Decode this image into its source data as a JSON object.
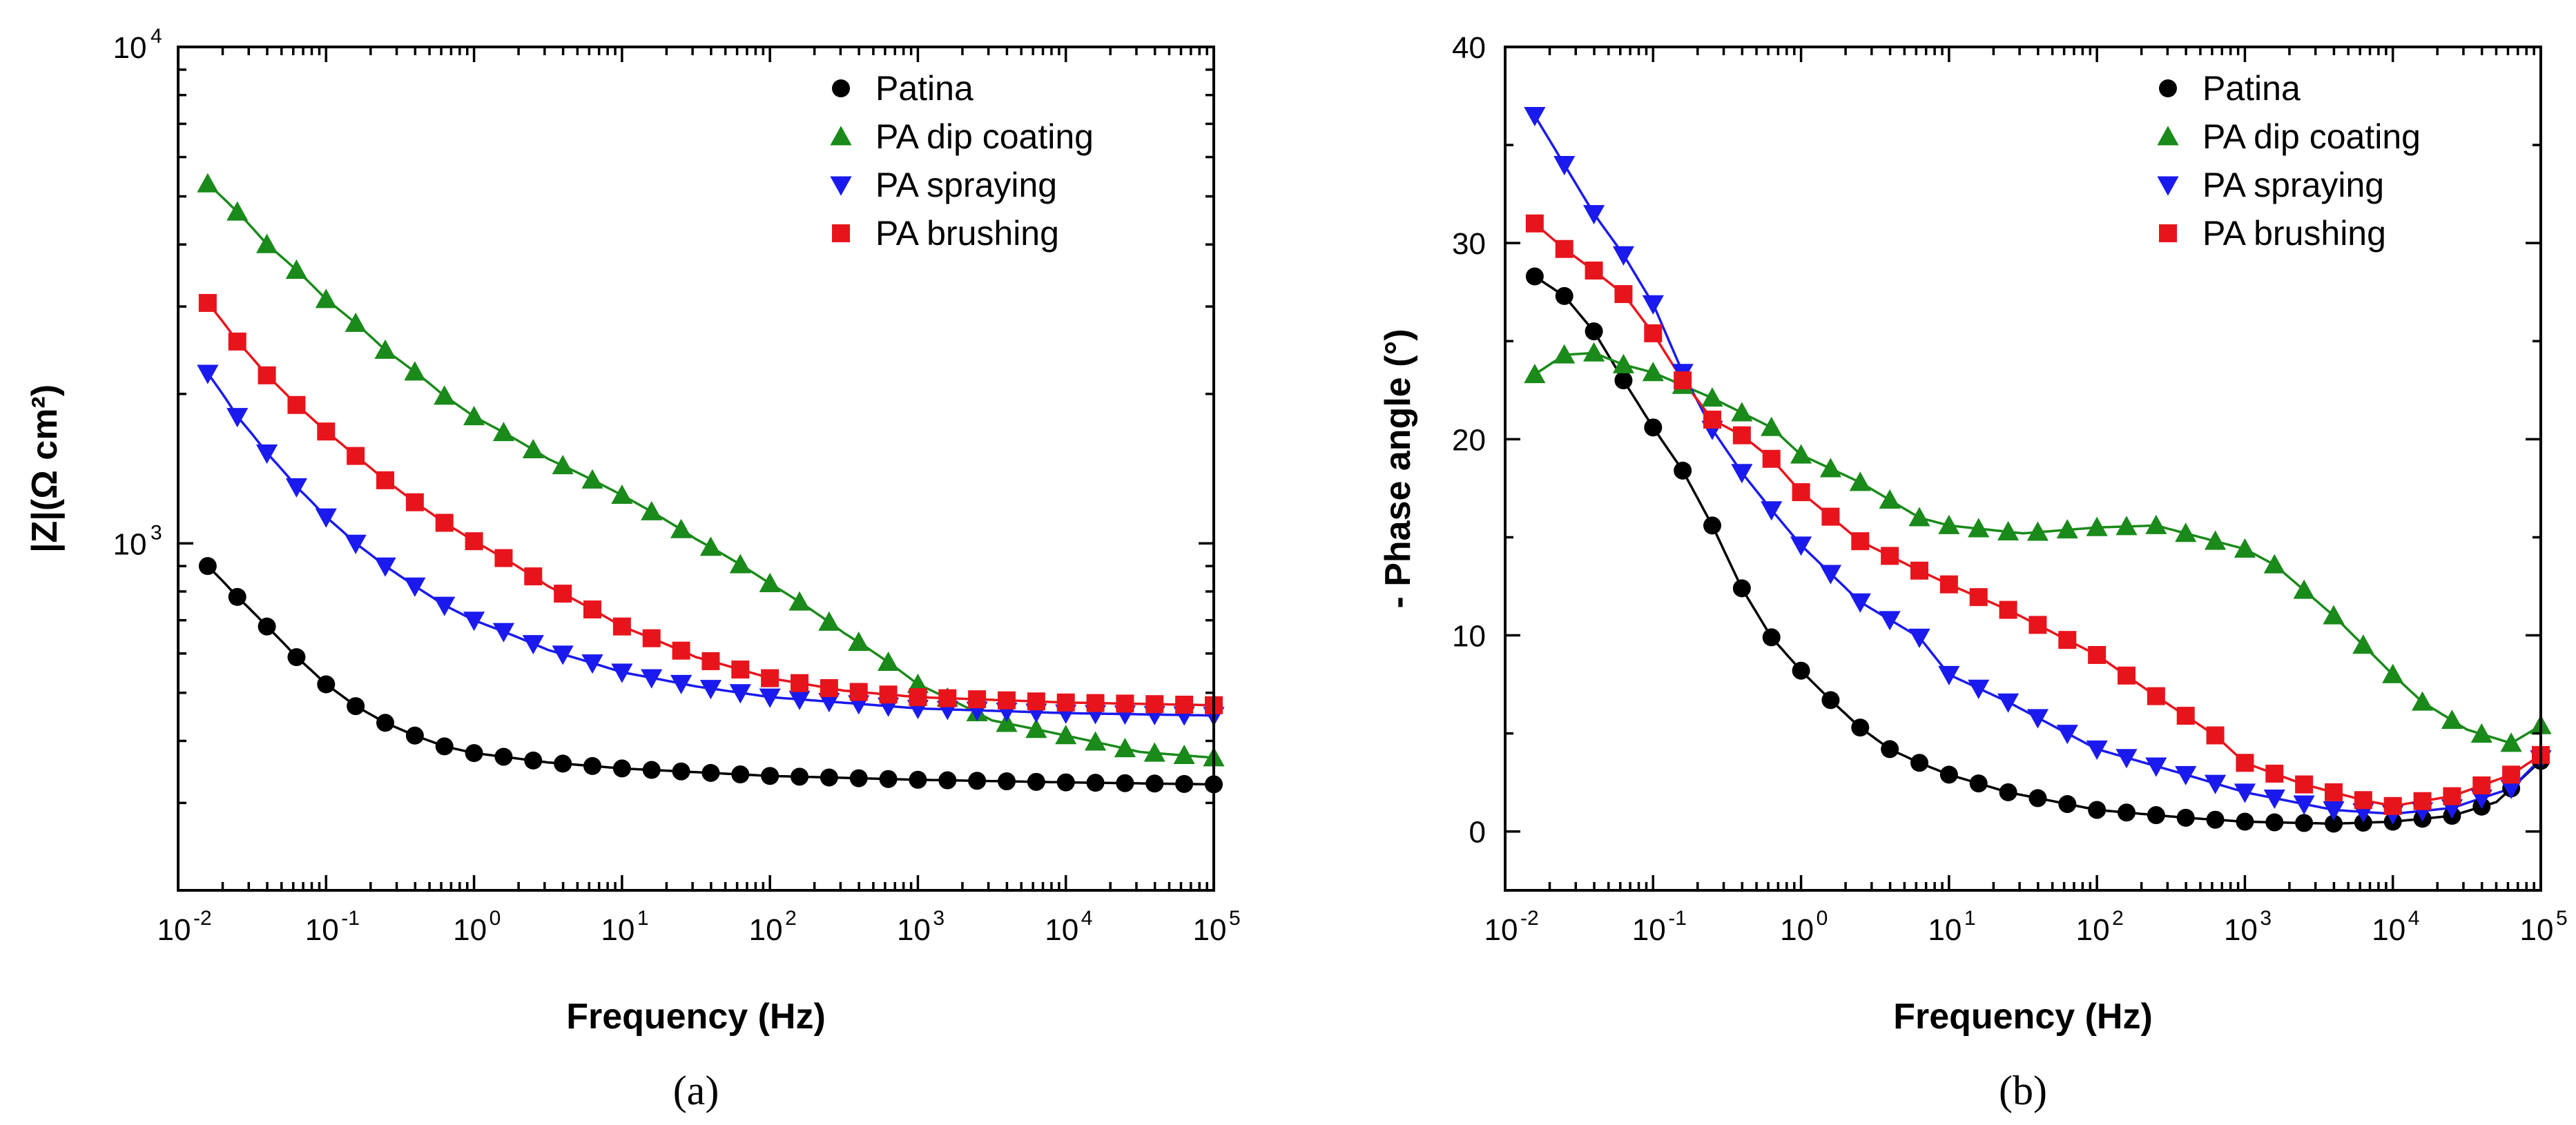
{
  "chart_data": [
    {
      "type": "scatter",
      "panel": "a",
      "caption": "(a)",
      "xscale": "log",
      "yscale": "log",
      "xlabel": "Frequency (Hz)",
      "ylabel": "|Z|(Ω cm²)",
      "xlim": [
        0.01,
        100000
      ],
      "ylim": [
        200,
        10000
      ],
      "x_ticks": [
        {
          "base": "10",
          "exp": "-2"
        },
        {
          "base": "10",
          "exp": "-1"
        },
        {
          "base": "10",
          "exp": "0"
        },
        {
          "base": "10",
          "exp": "1"
        },
        {
          "base": "10",
          "exp": "2"
        },
        {
          "base": "10",
          "exp": "3"
        },
        {
          "base": "10",
          "exp": "4"
        },
        {
          "base": "10",
          "exp": "5"
        }
      ],
      "y_ticks": [
        {
          "base": "10",
          "exp": "3"
        },
        {
          "base": "10",
          "exp": "4"
        }
      ],
      "legend_position": "top-right",
      "series": [
        {
          "name": "Patina",
          "marker": "circle",
          "color": "#000000",
          "anchors": [
            [
              -1.8,
              900
            ],
            [
              -1.6,
              780
            ],
            [
              -1.4,
              680
            ],
            [
              -1.2,
              590
            ],
            [
              -1.0,
              520
            ],
            [
              -0.8,
              470
            ],
            [
              -0.6,
              435
            ],
            [
              -0.4,
              410
            ],
            [
              -0.2,
              390
            ],
            [
              0.0,
              378
            ],
            [
              0.5,
              362
            ],
            [
              1.0,
              352
            ],
            [
              2.0,
              340
            ],
            [
              3.0,
              334
            ],
            [
              4.0,
              330
            ],
            [
              5.0,
              327
            ]
          ]
        },
        {
          "name": "PA dip coating",
          "marker": "triangle-up",
          "color": "#1a8a1a",
          "anchors": [
            [
              -1.8,
              5300
            ],
            [
              -1.4,
              4000
            ],
            [
              -1.0,
              3100
            ],
            [
              -0.6,
              2450
            ],
            [
              -0.2,
              1980
            ],
            [
              0.0,
              1800
            ],
            [
              0.5,
              1480
            ],
            [
              1.0,
              1250
            ],
            [
              1.5,
              1020
            ],
            [
              2.0,
              830
            ],
            [
              2.5,
              660
            ],
            [
              3.0,
              520
            ],
            [
              3.5,
              440
            ],
            [
              4.0,
              410
            ],
            [
              4.5,
              380
            ],
            [
              5.0,
              370
            ]
          ]
        },
        {
          "name": "PA spraying",
          "marker": "triangle-down",
          "color": "#1a1aee",
          "anchors": [
            [
              -1.8,
              2200
            ],
            [
              -1.6,
              1800
            ],
            [
              -1.4,
              1520
            ],
            [
              -1.2,
              1300
            ],
            [
              -1.0,
              1130
            ],
            [
              -0.8,
              1000
            ],
            [
              -0.6,
              900
            ],
            [
              -0.4,
              820
            ],
            [
              -0.2,
              750
            ],
            [
              0.0,
              700
            ],
            [
              0.5,
              610
            ],
            [
              1.0,
              550
            ],
            [
              1.5,
              515
            ],
            [
              2.0,
              490
            ],
            [
              3.0,
              465
            ],
            [
              4.0,
              455
            ],
            [
              5.0,
              450
            ]
          ]
        },
        {
          "name": "PA brushing",
          "marker": "square",
          "color": "#e8141c",
          "anchors": [
            [
              -1.8,
              3050
            ],
            [
              -1.6,
              2550
            ],
            [
              -1.4,
              2180
            ],
            [
              -1.2,
              1900
            ],
            [
              -1.0,
              1680
            ],
            [
              -0.8,
              1500
            ],
            [
              -0.6,
              1340
            ],
            [
              -0.4,
              1210
            ],
            [
              -0.2,
              1100
            ],
            [
              0.0,
              1010
            ],
            [
              0.5,
              820
            ],
            [
              1.0,
              680
            ],
            [
              1.5,
              590
            ],
            [
              2.0,
              535
            ],
            [
              2.5,
              505
            ],
            [
              3.0,
              490
            ],
            [
              4.0,
              478
            ],
            [
              5.0,
              472
            ]
          ]
        }
      ]
    },
    {
      "type": "scatter",
      "panel": "b",
      "caption": "(b)",
      "xscale": "log",
      "yscale": "linear",
      "xlabel": "Frequency (Hz)",
      "ylabel": "- Phase angle (°)",
      "xlim": [
        0.01,
        100000
      ],
      "ylim": [
        -3,
        40
      ],
      "x_ticks": [
        {
          "base": "10",
          "exp": "-2"
        },
        {
          "base": "10",
          "exp": "-1"
        },
        {
          "base": "10",
          "exp": "0"
        },
        {
          "base": "10",
          "exp": "1"
        },
        {
          "base": "10",
          "exp": "2"
        },
        {
          "base": "10",
          "exp": "3"
        },
        {
          "base": "10",
          "exp": "4"
        },
        {
          "base": "10",
          "exp": "5"
        }
      ],
      "y_ticks": [
        "0",
        "10",
        "20",
        "30",
        "40"
      ],
      "legend_position": "top-right",
      "series": [
        {
          "name": "Patina",
          "marker": "circle",
          "color": "#000000",
          "anchors": [
            [
              -1.8,
              28.3
            ],
            [
              -1.6,
              27.3
            ],
            [
              -1.4,
              25.5
            ],
            [
              -1.2,
              23.0
            ],
            [
              -1.0,
              20.6
            ],
            [
              -0.8,
              18.4
            ],
            [
              -0.6,
              15.6
            ],
            [
              -0.4,
              12.4
            ],
            [
              -0.2,
              9.9
            ],
            [
              0.0,
              8.2
            ],
            [
              0.2,
              6.7
            ],
            [
              0.4,
              5.3
            ],
            [
              0.6,
              4.2
            ],
            [
              0.8,
              3.5
            ],
            [
              1.0,
              2.9
            ],
            [
              1.4,
              2.0
            ],
            [
              2.0,
              1.1
            ],
            [
              2.6,
              0.7
            ],
            [
              3.0,
              0.5
            ],
            [
              3.6,
              0.4
            ],
            [
              4.0,
              0.5
            ],
            [
              4.4,
              0.8
            ],
            [
              4.7,
              1.5
            ],
            [
              5.0,
              3.6
            ]
          ]
        },
        {
          "name": "PA dip coating",
          "marker": "triangle-up",
          "color": "#1a8a1a",
          "anchors": [
            [
              -1.8,
              23.3
            ],
            [
              -1.6,
              24.3
            ],
            [
              -1.4,
              24.4
            ],
            [
              -1.2,
              23.8
            ],
            [
              -1.0,
              23.4
            ],
            [
              -0.6,
              22.1
            ],
            [
              -0.2,
              20.6
            ],
            [
              0.0,
              19.2
            ],
            [
              0.4,
              17.8
            ],
            [
              0.8,
              16.0
            ],
            [
              1.0,
              15.6
            ],
            [
              1.5,
              15.2
            ],
            [
              2.0,
              15.5
            ],
            [
              2.4,
              15.6
            ],
            [
              2.8,
              14.8
            ],
            [
              3.0,
              14.4
            ],
            [
              3.2,
              13.6
            ],
            [
              3.6,
              11.0
            ],
            [
              4.0,
              8.0
            ],
            [
              4.2,
              6.6
            ],
            [
              4.5,
              5.2
            ],
            [
              4.8,
              4.5
            ],
            [
              5.0,
              5.4
            ]
          ]
        },
        {
          "name": "PA spraying",
          "marker": "triangle-down",
          "color": "#1a1aee",
          "anchors": [
            [
              -1.8,
              36.5
            ],
            [
              -1.6,
              34.0
            ],
            [
              -1.4,
              31.5
            ],
            [
              -1.2,
              29.4
            ],
            [
              -1.0,
              26.9
            ],
            [
              -0.8,
              23.4
            ],
            [
              -0.6,
              20.5
            ],
            [
              -0.4,
              18.3
            ],
            [
              -0.2,
              16.4
            ],
            [
              0.0,
              14.6
            ],
            [
              0.4,
              11.7
            ],
            [
              0.8,
              9.9
            ],
            [
              1.0,
              8.0
            ],
            [
              1.4,
              6.6
            ],
            [
              2.0,
              4.2
            ],
            [
              2.6,
              2.9
            ],
            [
              3.0,
              2.0
            ],
            [
              3.6,
              1.1
            ],
            [
              4.0,
              0.9
            ],
            [
              4.4,
              1.2
            ],
            [
              4.8,
              2.2
            ],
            [
              5.0,
              3.7
            ]
          ]
        },
        {
          "name": "PA brushing",
          "marker": "square",
          "color": "#e8141c",
          "anchors": [
            [
              -1.8,
              31.0
            ],
            [
              -1.6,
              29.7
            ],
            [
              -1.4,
              28.6
            ],
            [
              -1.2,
              27.4
            ],
            [
              -1.0,
              25.4
            ],
            [
              -0.8,
              23.0
            ],
            [
              -0.6,
              21.0
            ],
            [
              -0.4,
              20.2
            ],
            [
              -0.2,
              19.0
            ],
            [
              0.0,
              17.3
            ],
            [
              0.4,
              14.8
            ],
            [
              0.8,
              13.3
            ],
            [
              1.0,
              12.6
            ],
            [
              1.4,
              11.3
            ],
            [
              2.0,
              9.0
            ],
            [
              2.4,
              6.9
            ],
            [
              2.8,
              4.9
            ],
            [
              3.0,
              3.5
            ],
            [
              3.4,
              2.4
            ],
            [
              3.8,
              1.6
            ],
            [
              4.0,
              1.3
            ],
            [
              4.4,
              1.8
            ],
            [
              4.8,
              2.9
            ],
            [
              5.0,
              3.9
            ]
          ]
        }
      ]
    }
  ]
}
